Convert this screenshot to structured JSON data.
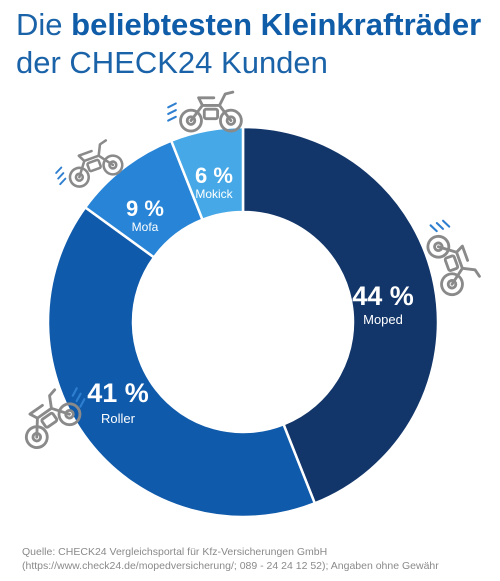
{
  "title": {
    "line1_plain": "Die ",
    "line1_bold": "beliebtesten Kleinkrafträder",
    "line2": "der CHECK24 Kunden"
  },
  "chart_data": {
    "type": "pie",
    "variant": "donut",
    "unit": "%",
    "slices": [
      {
        "label": "Moped",
        "value": 44,
        "display": "44 %",
        "color": "#13366a",
        "icon": "moped-icon"
      },
      {
        "label": "Roller",
        "value": 41,
        "display": "41 %",
        "color": "#0f5aab",
        "icon": "scooter-icon"
      },
      {
        "label": "Mofa",
        "value": 9,
        "display": "9 %",
        "color": "#2784d6",
        "icon": "mofa-icon"
      },
      {
        "label": "Mokick",
        "value": 6,
        "display": "6 %",
        "color": "#46a8e6",
        "icon": "mokick-icon"
      }
    ]
  },
  "source": {
    "line1": "Quelle: CHECK24 Vergleichsportal für Kfz-Versicherungen GmbH",
    "line2": "(https://www.check24.de/mopedversicherung/; 089 - 24 24 12 52); Angaben ohne Gewähr"
  }
}
